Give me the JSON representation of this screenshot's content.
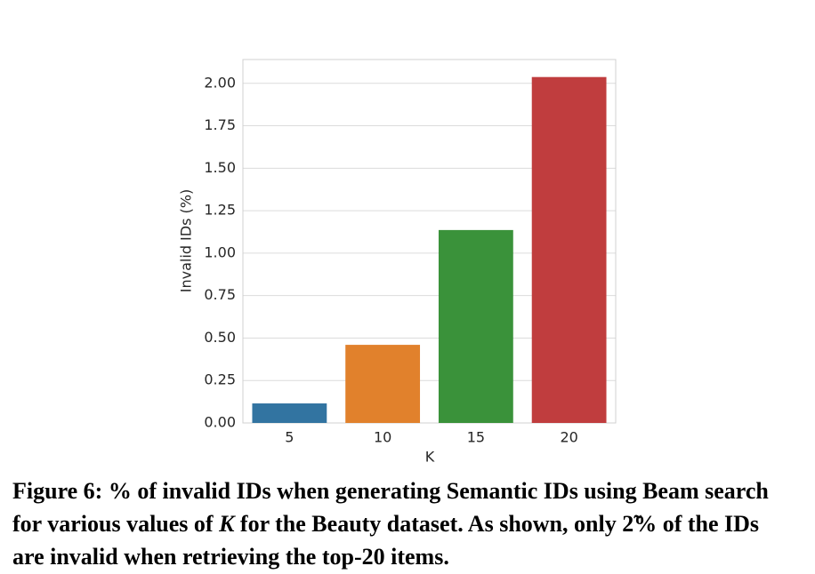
{
  "chart_data": {
    "type": "bar",
    "xlabel": "K",
    "ylabel": "Invalid IDs (%)",
    "categories": [
      "5",
      "10",
      "15",
      "20"
    ],
    "values": [
      0.115,
      0.46,
      1.136,
      2.037
    ],
    "colors": [
      "#3274a1",
      "#e1812c",
      "#3a923a",
      "#c03d3e"
    ],
    "ylim": [
      0,
      2.14
    ],
    "yticks": [
      {
        "value": 0,
        "label": "0.00"
      },
      {
        "value": 0.25,
        "label": "0.25"
      },
      {
        "value": 0.5,
        "label": "0.50"
      },
      {
        "value": 0.75,
        "label": "0.75"
      },
      {
        "value": 1,
        "label": "1.00"
      },
      {
        "value": 1.25,
        "label": "1.25"
      },
      {
        "value": 1.5,
        "label": "1.50"
      },
      {
        "value": 1.75,
        "label": "1.75"
      },
      {
        "value": 2,
        "label": "2.00"
      }
    ],
    "grid": true
  },
  "caption": [
    "Figure 6: % of invalid IDs when generating Semantic IDs using Beam search for various values of ",
    "K",
    " for the Beauty dataset. As shown, only 2̃% of the IDs are invalid when retrieving the top-20 items."
  ]
}
